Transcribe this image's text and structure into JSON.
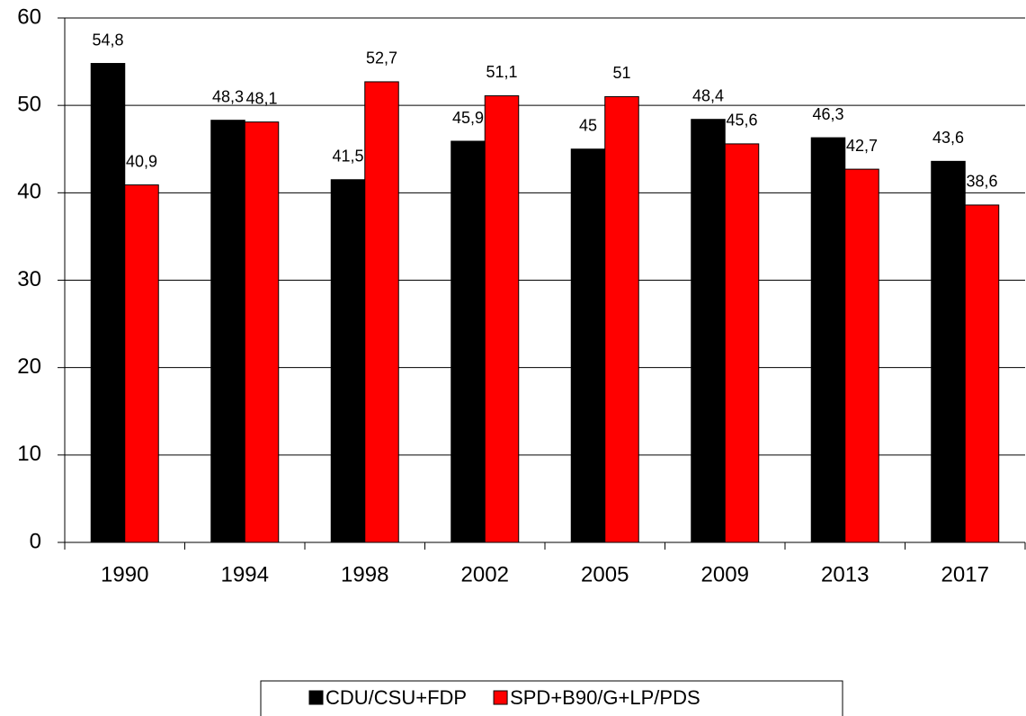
{
  "chart_data": {
    "type": "bar",
    "categories": [
      "1990",
      "1994",
      "1998",
      "2002",
      "2005",
      "2009",
      "2013",
      "2017"
    ],
    "series": [
      {
        "name": "CDU/CSU+FDP",
        "color": "#000000",
        "values": [
          54.8,
          48.3,
          41.5,
          45.9,
          45,
          48.4,
          46.3,
          43.6
        ],
        "value_labels": [
          "54,8",
          "48,3",
          "41,5",
          "45,9",
          "45",
          "48,4",
          "46,3",
          "43,6"
        ]
      },
      {
        "name": "SPD+B90/G+LP/PDS",
        "color": "#ff0000",
        "values": [
          40.9,
          48.1,
          52.7,
          51.1,
          51,
          45.6,
          42.7,
          38.6
        ],
        "value_labels": [
          "40,9",
          "48,1",
          "52,7",
          "51,1",
          "51",
          "45,6",
          "42,7",
          "38,6"
        ]
      }
    ],
    "ylim": [
      0,
      60
    ],
    "yticks": [
      0,
      10,
      20,
      30,
      40,
      50,
      60
    ],
    "grid": true,
    "legend": "bottom"
  }
}
